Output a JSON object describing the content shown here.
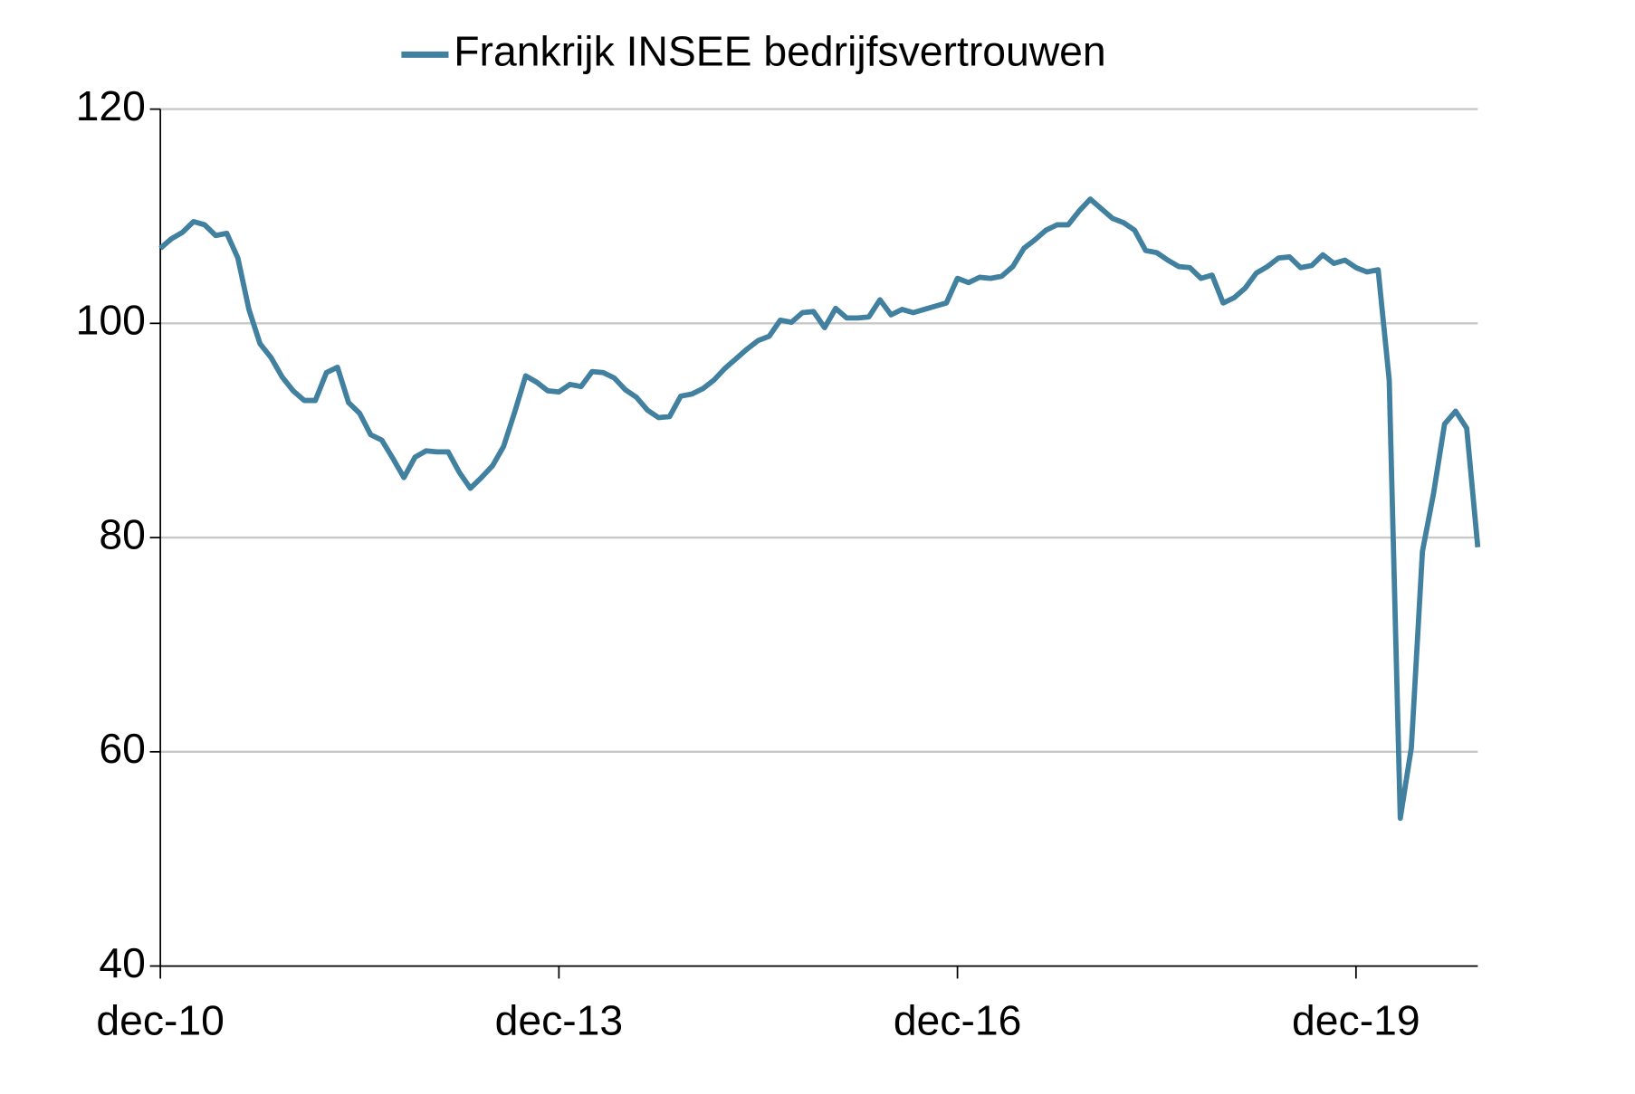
{
  "chart_data": {
    "type": "line",
    "categories": [
      "dec-10",
      null,
      null,
      null,
      null,
      null,
      null,
      null,
      null,
      null,
      null,
      null,
      null,
      null,
      null,
      null,
      null,
      null,
      null,
      null,
      null,
      null,
      null,
      null,
      null,
      null,
      null,
      null,
      null,
      null,
      null,
      null,
      null,
      null,
      null,
      null,
      "dec-13",
      null,
      null,
      null,
      null,
      null,
      null,
      null,
      null,
      null,
      null,
      null,
      null,
      null,
      null,
      null,
      null,
      null,
      null,
      null,
      null,
      null,
      null,
      null,
      null,
      null,
      null,
      null,
      null,
      null,
      null,
      null,
      null,
      null,
      null,
      null,
      "dec-16",
      null,
      null,
      null,
      null,
      null,
      null,
      null,
      null,
      null,
      null,
      null,
      null,
      null,
      null,
      null,
      null,
      null,
      null,
      null,
      null,
      null,
      null,
      null,
      null,
      null,
      null,
      null,
      null,
      null,
      null,
      null,
      null,
      null,
      null,
      null,
      "dec-19",
      null,
      null,
      null,
      null,
      null,
      null,
      null,
      null,
      null,
      null,
      null
    ],
    "series": [
      {
        "name": "Frankrijk INSEE bedrijfsvertrouwen",
        "color": "#41809f",
        "values": [
          107.0,
          107.9,
          108.5,
          109.5,
          109.2,
          108.2,
          108.4,
          106.1,
          101.3,
          98.1,
          96.8,
          95.0,
          93.7,
          92.8,
          92.8,
          95.4,
          95.9,
          92.6,
          91.6,
          89.6,
          89.1,
          87.4,
          85.6,
          87.5,
          88.1,
          88.0,
          88.0,
          86.1,
          84.6,
          85.6,
          86.7,
          88.5,
          91.7,
          95.1,
          94.5,
          93.7,
          93.6,
          94.3,
          94.1,
          95.5,
          95.4,
          94.9,
          93.8,
          93.1,
          91.9,
          91.2,
          91.3,
          93.2,
          93.4,
          93.9,
          94.7,
          95.8,
          96.7,
          97.6,
          98.4,
          98.8,
          100.3,
          100.1,
          101.0,
          101.1,
          99.6,
          101.4,
          100.5,
          100.5,
          100.6,
          102.2,
          100.8,
          101.3,
          101.0,
          101.3,
          101.6,
          101.9,
          104.2,
          103.8,
          104.3,
          104.2,
          104.4,
          105.3,
          107.0,
          107.8,
          108.7,
          109.2,
          109.2,
          110.5,
          111.6,
          110.7,
          109.8,
          109.4,
          108.7,
          106.8,
          106.6,
          105.9,
          105.3,
          105.2,
          104.2,
          104.5,
          101.9,
          102.4,
          103.3,
          104.7,
          105.3,
          106.1,
          106.2,
          105.2,
          105.4,
          106.4,
          105.6,
          105.9,
          105.2,
          104.8,
          105.0,
          94.7,
          53.8,
          60.4,
          78.7,
          84.1,
          90.6,
          91.8,
          90.2,
          79.1
        ]
      }
    ],
    "ylim": [
      40,
      120
    ],
    "yticks": [
      40,
      60,
      80,
      100,
      120
    ],
    "grid": true,
    "legend": "top"
  }
}
